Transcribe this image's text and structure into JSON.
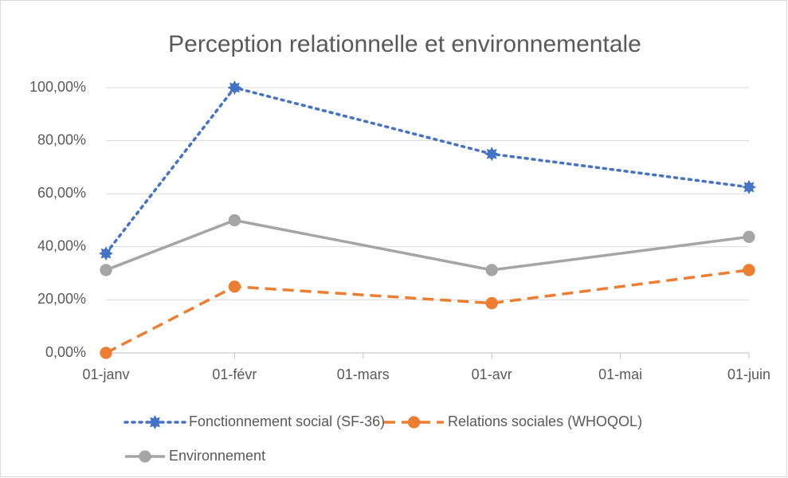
{
  "chart_data": {
    "type": "line",
    "title": "Perception relationnelle et environnementale",
    "categories": [
      "01-janv",
      "01-févr",
      "01-mars",
      "01-avr",
      "01-mai",
      "01-juin"
    ],
    "series": [
      {
        "name": "Fonctionnement social (SF-36)",
        "color": "#4472c4",
        "dash": "dotted",
        "marker": "star",
        "x": [
          "01-janv",
          "01-févr",
          "01-avr",
          "01-juin"
        ],
        "values": [
          37.5,
          100,
          75,
          62.5
        ]
      },
      {
        "name": "Relations sociales (WHOQOL)",
        "color": "#ed7d31",
        "dash": "dashed",
        "marker": "circle",
        "x": [
          "01-janv",
          "01-févr",
          "01-avr",
          "01-juin"
        ],
        "values": [
          0,
          25,
          18.75,
          31.25
        ]
      },
      {
        "name": "Environnement",
        "color": "#a5a5a5",
        "dash": "solid",
        "marker": "circle",
        "x": [
          "01-janv",
          "01-févr",
          "01-avr",
          "01-juin"
        ],
        "values": [
          31.25,
          50,
          31.25,
          43.75
        ]
      }
    ],
    "ylim": [
      0,
      100
    ],
    "yticks": [
      {
        "value": 0,
        "label": "0,00%"
      },
      {
        "value": 20,
        "label": "20,00%"
      },
      {
        "value": 40,
        "label": "40,00%"
      },
      {
        "value": 60,
        "label": "60,00%"
      },
      {
        "value": 80,
        "label": "80,00%"
      },
      {
        "value": 100,
        "label": "100,00%"
      }
    ],
    "grid": true,
    "legend": "bottom"
  }
}
